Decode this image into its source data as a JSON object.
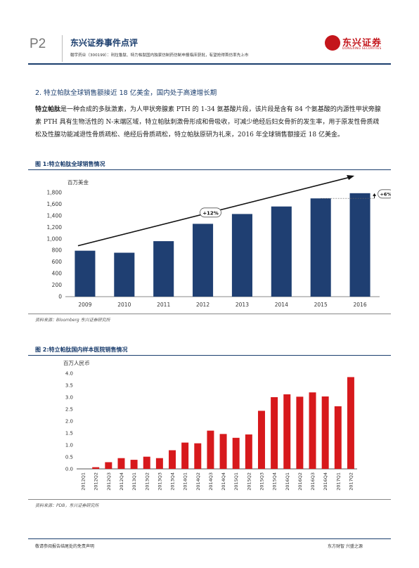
{
  "header": {
    "page_no": "P2",
    "report_type": "东兴证券事件点评",
    "subtitle": "翰宇药业（300199）：利拉鲁肽、特力帕肽国内独家仿制药仿制申报临床获批，有望抢得首仿率先上市",
    "logo_cn": "东兴证券",
    "logo_en": "DONGXING SECURITIES"
  },
  "section": {
    "heading": "2. 特立帕肽全球销售额接近 18 亿美金，国内处于高速增长期",
    "para_bold": "特立帕肽",
    "para_text": "是一种合成的多肽激素，为人甲状旁腺素 PTH 的 1-34 氨基酸片段，该片段是含有 84 个氨基酸的内源性甲状旁腺素 PTH 具有生物活性的 N-末端区域，特立帕肽刺激骨形成和骨吸收，可减少绝经后妇女骨折的发生率，用于原发性骨质疏松及性腺功能减退性骨质疏松、绝经后骨质疏松，特立帕肽原研为礼来，2016 年全球销售额接近 18 亿美金。"
  },
  "figure1": {
    "title": "图 1:特立帕肽全球销售情况",
    "source": "资料来源：Bloomberg 东兴证券研究所"
  },
  "figure2": {
    "title": "图 2:特立帕肽国内样本医院销售情况",
    "source": "资料来源：PDB，东兴证券研究所"
  },
  "footer": {
    "left": "敬请参阅报告结尾处的免责声明",
    "right": "东方财智 兴盛之源"
  },
  "chart_data": [
    {
      "type": "bar",
      "ylabel": "百万美金",
      "categories": [
        "2009",
        "2010",
        "2011",
        "2012",
        "2013",
        "2014",
        "2015",
        "2016"
      ],
      "values": [
        795,
        760,
        960,
        1260,
        1430,
        1560,
        1700,
        1790
      ],
      "ylim": [
        0,
        1800
      ],
      "yticks": [
        "0",
        "200",
        "400",
        "600",
        "800",
        "1,000",
        "1,200",
        "1,400",
        "1,600",
        "1,800"
      ],
      "annotations": [
        "+12%",
        "+6%"
      ],
      "grid": false,
      "color": "#1f3f72"
    },
    {
      "type": "bar",
      "ylabel": "百万人民币",
      "categories": [
        "2012Q1",
        "2012Q2",
        "2012Q3",
        "2012Q4",
        "2013Q1",
        "2013Q2",
        "2013Q3",
        "2013Q4",
        "2014Q1",
        "2014Q2",
        "2014Q3",
        "2014Q4",
        "2015Q1",
        "2015Q2",
        "2015Q3",
        "2015Q4",
        "2016Q1",
        "2016Q2",
        "2016Q3",
        "2016Q4",
        "2017Q1",
        "2017Q2"
      ],
      "values": [
        0.0,
        0.07,
        0.28,
        0.45,
        0.38,
        0.51,
        0.45,
        0.78,
        1.1,
        1.07,
        1.6,
        1.46,
        1.3,
        1.44,
        2.43,
        3.0,
        3.12,
        3.02,
        3.2,
        3.03,
        2.62,
        3.84
      ],
      "ylim": [
        0,
        4
      ],
      "yticks": [
        "0.0",
        "0.5",
        "1.0",
        "1.5",
        "2.0",
        "2.5",
        "3.0",
        "3.5",
        "4.0"
      ],
      "grid": false,
      "color": "#d7191c"
    }
  ]
}
